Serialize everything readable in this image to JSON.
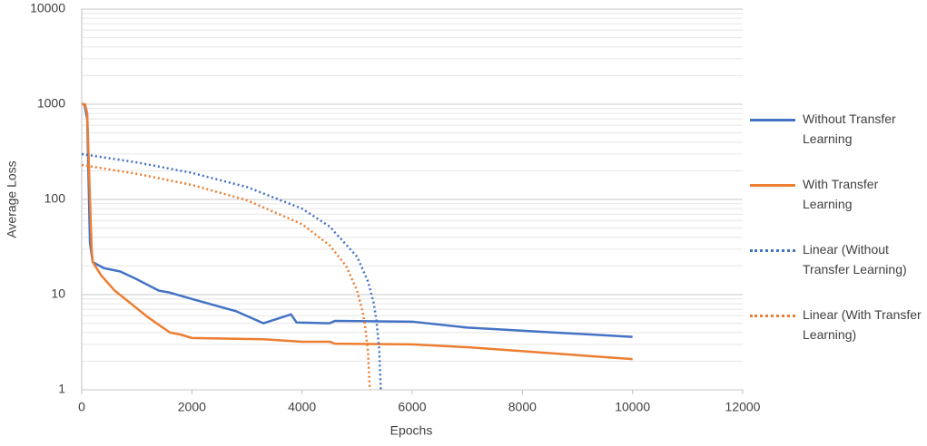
{
  "chart_data": {
    "type": "line",
    "xlabel": "Epochs",
    "ylabel": "Average Loss",
    "xlim": [
      0,
      12000
    ],
    "xticks": [
      0,
      2000,
      4000,
      6000,
      8000,
      10000,
      12000
    ],
    "ylim": [
      1,
      10000
    ],
    "yticks": [
      1,
      10,
      100,
      1000,
      10000
    ],
    "log_y": true,
    "grid": true,
    "minor_grid": true,
    "legend": "right",
    "series": [
      {
        "name": "Without Transfer Learning",
        "color": "#4472c4",
        "dash": "solid",
        "x": [
          0,
          50,
          100,
          150,
          200,
          400,
          700,
          1000,
          1400,
          1600,
          2000,
          2800,
          3300,
          3800,
          3900,
          4500,
          4600,
          6000,
          7000,
          10000
        ],
        "values": [
          1000,
          1000,
          700,
          35,
          22,
          19,
          17.5,
          14.5,
          11,
          10.5,
          9,
          6.7,
          5,
          6.2,
          5.1,
          5,
          5.3,
          5.2,
          4.5,
          3.6
        ]
      },
      {
        "name": "With Transfer Learning",
        "color": "#ed7d31",
        "dash": "solid",
        "x": [
          0,
          60,
          100,
          150,
          180,
          200,
          350,
          600,
          900,
          1200,
          1600,
          1800,
          2000,
          3300,
          4000,
          4500,
          4600,
          6000,
          7000,
          10000
        ],
        "values": [
          1000,
          1000,
          800,
          100,
          30,
          22,
          16,
          11,
          8,
          5.8,
          4,
          3.8,
          3.5,
          3.4,
          3.2,
          3.2,
          3.05,
          3.0,
          2.8,
          2.1
        ]
      },
      {
        "name": "Linear (Without Transfer Learning)",
        "color": "#4472c4",
        "dash": "dotted",
        "x": [
          0,
          1000,
          2000,
          3000,
          4000,
          4500,
          5000,
          5200,
          5300,
          5350,
          5400,
          5430
        ],
        "values": [
          300,
          245,
          190,
          135,
          80,
          52,
          25,
          13.6,
          8.2,
          5.4,
          2.7,
          1
        ]
      },
      {
        "name": "Linear (With Transfer Learning)",
        "color": "#ed7d31",
        "dash": "dotted",
        "x": [
          0,
          1000,
          2000,
          3000,
          4000,
          4500,
          4800,
          5000,
          5100,
          5150,
          5200,
          5230
        ],
        "values": [
          230,
          186,
          142,
          98,
          55,
          33,
          20,
          11,
          6.6,
          4.5,
          2.4,
          1
        ]
      }
    ]
  }
}
